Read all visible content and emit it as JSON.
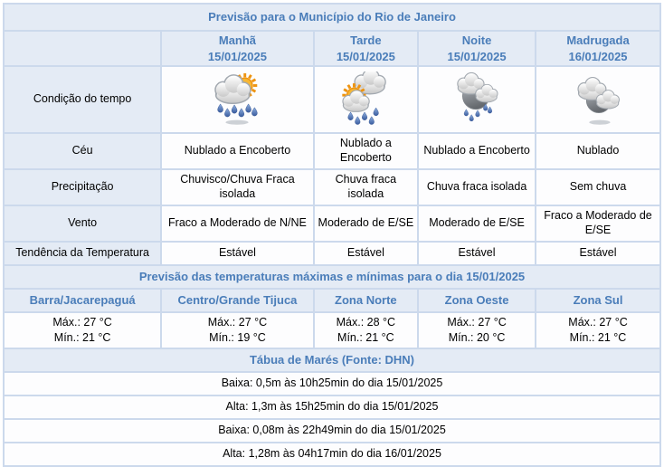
{
  "colors": {
    "accent": "#4a7db9",
    "header_bg": "#e4ebf5",
    "border": "#ccd9ec",
    "cell_bg": "#fdfdfe",
    "text": "#000000",
    "sun": "#f7b733",
    "sun_stroke": "#ee9411",
    "raindrop_light": "#8fb0e0",
    "raindrop_dark": "#3a5c9e",
    "cloud_light": "#ffffff",
    "cloud_shade": "#c9c9c9",
    "moon_light": "#b4b9bf",
    "moon_dark": "#64686d"
  },
  "title": "Previsão para o Município do Rio de Janeiro",
  "forecast": {
    "row_labels": {
      "condition": "Condição do tempo",
      "sky": "Céu",
      "precipitation": "Precipitação",
      "wind": "Vento",
      "trend": "Tendência da Temperatura"
    },
    "columns": [
      {
        "label": "Manhã",
        "date": "15/01/2025",
        "icon": "sun-cloud-rain",
        "sky": "Nublado a Encoberto",
        "precipitation": "Chuvisco/Chuva Fraca isolada",
        "wind": "Fraco a Moderado de N/NE",
        "trend": "Estável"
      },
      {
        "label": "Tarde",
        "date": "15/01/2025",
        "icon": "sun-clouds-rain",
        "sky": "Nublado a Encoberto",
        "precipitation": "Chuva fraca isolada",
        "wind": "Moderado de E/SE",
        "trend": "Estável"
      },
      {
        "label": "Noite",
        "date": "15/01/2025",
        "icon": "moon-clouds-rain",
        "sky": "Nublado a Encoberto",
        "precipitation": "Chuva fraca isolada",
        "wind": "Moderado de E/SE",
        "trend": "Estável"
      },
      {
        "label": "Madrugada",
        "date": "16/01/2025",
        "icon": "moon-clouds",
        "sky": "Nublado",
        "precipitation": "Sem chuva",
        "wind": "Fraco a Moderado de E/SE",
        "trend": "Estável"
      }
    ]
  },
  "temperatures": {
    "title": "Previsão das temperaturas máximas e mínimas para o dia 15/01/2025",
    "zones": [
      {
        "name": "Barra/Jacarepaguá",
        "max": "Máx.: 27 °C",
        "min": "Mín.: 21 °C"
      },
      {
        "name": "Centro/Grande Tijuca",
        "max": "Máx.: 27 °C",
        "min": "Mín.: 19 °C"
      },
      {
        "name": "Zona Norte",
        "max": "Máx.: 28 °C",
        "min": "Mín.: 21 °C"
      },
      {
        "name": "Zona Oeste",
        "max": "Máx.: 27 °C",
        "min": "Mín.: 20 °C"
      },
      {
        "name": "Zona Sul",
        "max": "Máx.: 27 °C",
        "min": "Mín.: 21 °C"
      }
    ]
  },
  "tides": {
    "title": "Tábua de Marés (Fonte: DHN)",
    "entries": [
      "Baixa: 0,5m às 10h25min do dia 15/01/2025",
      "Alta: 1,3m às 15h25min do dia 15/01/2025",
      "Baixa: 0,08m às 22h49min do dia 15/01/2025",
      "Alta: 1,28m às 04h17min do dia 16/01/2025"
    ]
  }
}
